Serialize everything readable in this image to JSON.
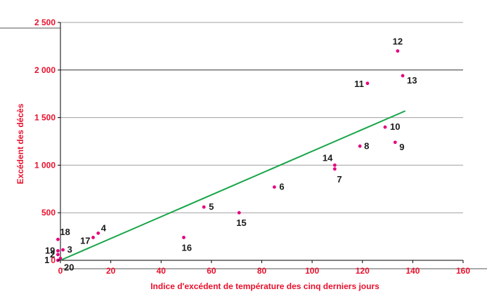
{
  "chart_data": {
    "type": "scatter",
    "xlabel": "Indice d'excédent de température des cinq derniers jours",
    "ylabel": "Excédent des décès",
    "xlim": [
      0,
      160
    ],
    "ylim": [
      0,
      2500
    ],
    "x_ticks": [
      0,
      20,
      40,
      60,
      80,
      100,
      120,
      140,
      160
    ],
    "x_tick_labels": [
      "0",
      "20",
      "40",
      "60",
      "80",
      "100",
      "120",
      "140",
      "160"
    ],
    "y_ticks": [
      0,
      500,
      1000,
      1500,
      2000,
      2500
    ],
    "y_tick_labels": [
      "0",
      "500",
      "1 000",
      "1 500",
      "2 000",
      "2 500"
    ],
    "grid": "horizontal",
    "points": [
      {
        "label": "1",
        "x": -1,
        "y": 0
      },
      {
        "label": "2",
        "x": -1,
        "y": 60
      },
      {
        "label": "3",
        "x": 1,
        "y": 110
      },
      {
        "label": "4",
        "x": 15,
        "y": 285
      },
      {
        "label": "5",
        "x": 57,
        "y": 560
      },
      {
        "label": "6",
        "x": 85,
        "y": 770
      },
      {
        "label": "7",
        "x": 109,
        "y": 960
      },
      {
        "label": "8",
        "x": 119,
        "y": 1200
      },
      {
        "label": "9",
        "x": 133,
        "y": 1240
      },
      {
        "label": "10",
        "x": 129,
        "y": 1400
      },
      {
        "label": "11",
        "x": 122,
        "y": 1860
      },
      {
        "label": "12",
        "x": 134,
        "y": 2200
      },
      {
        "label": "13",
        "x": 136,
        "y": 1940
      },
      {
        "label": "14",
        "x": 109,
        "y": 1000
      },
      {
        "label": "15",
        "x": 71,
        "y": 500
      },
      {
        "label": "16",
        "x": 49,
        "y": 240
      },
      {
        "label": "17",
        "x": 13,
        "y": 240
      },
      {
        "label": "18",
        "x": -1,
        "y": 220
      },
      {
        "label": "19",
        "x": -1,
        "y": 100
      },
      {
        "label": "20",
        "x": 0,
        "y": 20
      }
    ],
    "trend_line": {
      "x": [
        0,
        137
      ],
      "y": [
        0,
        1570
      ]
    },
    "colors": {
      "points": "#e6007e",
      "trend": "#17a548",
      "axis_text": "#e8112d",
      "grid": "#a0a0a0",
      "labels": "#1a1a1a"
    }
  }
}
